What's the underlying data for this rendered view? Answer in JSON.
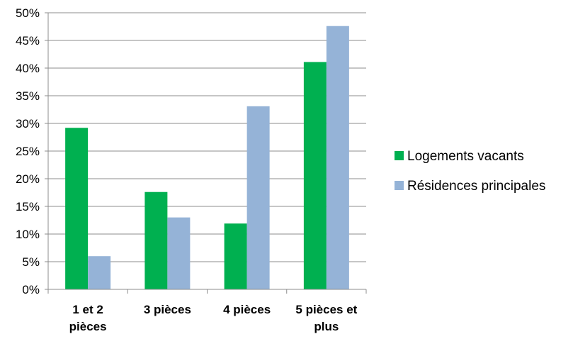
{
  "chart_data": {
    "type": "bar",
    "categories": [
      [
        "1 et 2",
        "pièces"
      ],
      [
        "3 pièces"
      ],
      [
        "4 pièces"
      ],
      [
        "5 pièces et",
        "plus"
      ]
    ],
    "series": [
      {
        "name": "Logements vacants",
        "color": "#00B050",
        "values": [
          29.2,
          17.6,
          11.9,
          41.1
        ]
      },
      {
        "name": "Résidences principales",
        "color": "#95B3D7",
        "values": [
          6.0,
          13.0,
          33.1,
          47.6
        ]
      }
    ],
    "y_ticks": [
      "0%",
      "5%",
      "10%",
      "15%",
      "20%",
      "25%",
      "30%",
      "35%",
      "40%",
      "45%",
      "50%"
    ],
    "ylim": [
      0,
      50
    ],
    "grid": true,
    "legend_position": "right"
  }
}
